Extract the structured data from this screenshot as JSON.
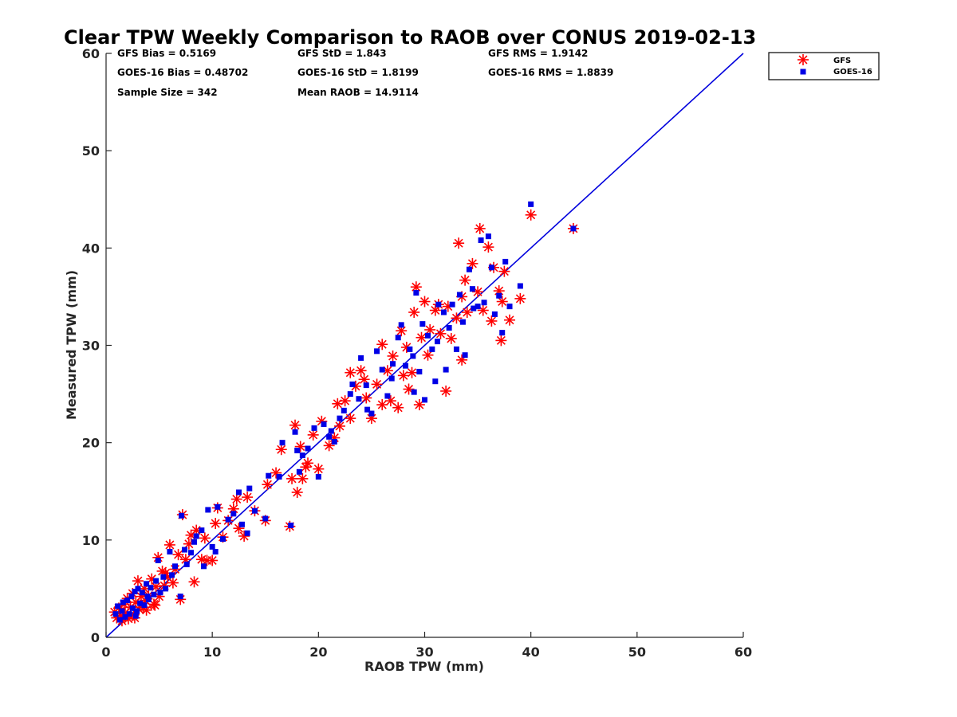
{
  "chart_data": {
    "type": "scatter",
    "title": "Clear TPW Weekly Comparison to RAOB over CONUS 2019-02-13",
    "xlabel": "RAOB TPW (mm)",
    "ylabel": "Measured TPW (mm)",
    "xlim": [
      0,
      60
    ],
    "ylim": [
      0,
      60
    ],
    "xticks": [
      "0",
      "10",
      "20",
      "30",
      "40",
      "50",
      "60"
    ],
    "yticks": [
      "0",
      "10",
      "20",
      "30",
      "40",
      "50",
      "60"
    ],
    "grid": false,
    "legend_position": "top-right",
    "reference_line": {
      "from": [
        0,
        0
      ],
      "to": [
        60,
        60
      ],
      "color": "#0000dd"
    },
    "stats": [
      [
        "GFS Bias = 0.5169",
        "GFS StD = 1.843",
        "GFS RMS = 1.9142"
      ],
      [
        "GOES-16 Bias = 0.48702",
        "GOES-16 StD = 1.8199",
        "GOES-16 RMS = 1.8839"
      ],
      [
        "Sample Size = 342",
        "Mean RAOB = 14.9114",
        ""
      ]
    ],
    "series": [
      {
        "name": "GFS",
        "marker": "asterisk",
        "color": "#ff0000",
        "points": [
          [
            0.8,
            2.6
          ],
          [
            1.0,
            2.0
          ],
          [
            1.2,
            3.0
          ],
          [
            1.4,
            2.2
          ],
          [
            1.5,
            1.7
          ],
          [
            1.7,
            3.4
          ],
          [
            1.8,
            2.5
          ],
          [
            2.0,
            4.0
          ],
          [
            2.1,
            1.9
          ],
          [
            2.3,
            3.1
          ],
          [
            2.5,
            4.5
          ],
          [
            2.6,
            2.3
          ],
          [
            2.8,
            3.6
          ],
          [
            3.0,
            5.8
          ],
          [
            3.1,
            2.9
          ],
          [
            3.3,
            4.2
          ],
          [
            3.5,
            3.1
          ],
          [
            3.6,
            5.0
          ],
          [
            3.8,
            2.8
          ],
          [
            4.0,
            4.3
          ],
          [
            4.3,
            6.0
          ],
          [
            4.5,
            3.4
          ],
          [
            4.7,
            5.2
          ],
          [
            4.9,
            8.2
          ],
          [
            5.0,
            4.2
          ],
          [
            5.3,
            6.8
          ],
          [
            5.5,
            5.3
          ],
          [
            5.8,
            6.2
          ],
          [
            6.0,
            9.5
          ],
          [
            6.3,
            5.6
          ],
          [
            6.5,
            7.0
          ],
          [
            6.8,
            8.5
          ],
          [
            7.0,
            3.9
          ],
          [
            7.2,
            12.6
          ],
          [
            7.5,
            8.0
          ],
          [
            7.8,
            9.6
          ],
          [
            8.0,
            10.5
          ],
          [
            8.3,
            5.7
          ],
          [
            8.5,
            11.0
          ],
          [
            9.0,
            8.0
          ],
          [
            9.3,
            10.2
          ],
          [
            9.5,
            7.9
          ],
          [
            10.0,
            7.9
          ],
          [
            10.3,
            11.7
          ],
          [
            10.5,
            13.3
          ],
          [
            11.0,
            10.3
          ],
          [
            11.5,
            12.0
          ],
          [
            12.0,
            13.2
          ],
          [
            12.3,
            14.2
          ],
          [
            12.5,
            11.2
          ],
          [
            13.0,
            10.4
          ],
          [
            13.3,
            14.4
          ],
          [
            14.0,
            13.0
          ],
          [
            15.0,
            12.0
          ],
          [
            15.2,
            15.7
          ],
          [
            16.0,
            16.9
          ],
          [
            16.5,
            19.3
          ],
          [
            17.5,
            16.3
          ],
          [
            17.8,
            21.8
          ],
          [
            18.0,
            14.9
          ],
          [
            18.3,
            19.6
          ],
          [
            18.8,
            17.5
          ],
          [
            19.0,
            17.9
          ],
          [
            19.5,
            20.8
          ],
          [
            20.0,
            17.3
          ],
          [
            20.3,
            22.2
          ],
          [
            21.0,
            19.7
          ],
          [
            21.5,
            20.5
          ],
          [
            22.0,
            21.7
          ],
          [
            22.5,
            24.3
          ],
          [
            23.0,
            22.5
          ],
          [
            23.0,
            27.2
          ],
          [
            23.5,
            25.8
          ],
          [
            24.0,
            27.4
          ],
          [
            24.5,
            24.6
          ],
          [
            25.0,
            22.5
          ],
          [
            25.5,
            26.0
          ],
          [
            26.0,
            23.9
          ],
          [
            26.0,
            30.1
          ],
          [
            26.5,
            27.4
          ],
          [
            27.0,
            28.9
          ],
          [
            27.5,
            23.6
          ],
          [
            27.8,
            31.5
          ],
          [
            28.0,
            26.9
          ],
          [
            28.3,
            29.8
          ],
          [
            28.5,
            25.5
          ],
          [
            29.0,
            33.4
          ],
          [
            29.2,
            36.0
          ],
          [
            29.5,
            23.9
          ],
          [
            29.7,
            30.8
          ],
          [
            30.0,
            34.5
          ],
          [
            30.3,
            29.0
          ],
          [
            30.5,
            31.6
          ],
          [
            31.0,
            33.6
          ],
          [
            31.5,
            31.2
          ],
          [
            32.0,
            25.3
          ],
          [
            32.2,
            34.0
          ],
          [
            32.5,
            30.7
          ],
          [
            33.0,
            32.8
          ],
          [
            33.2,
            40.5
          ],
          [
            33.5,
            28.5
          ],
          [
            33.8,
            36.7
          ],
          [
            34.0,
            33.4
          ],
          [
            34.5,
            38.4
          ],
          [
            35.0,
            35.5
          ],
          [
            35.2,
            42.0
          ],
          [
            35.5,
            33.6
          ],
          [
            36.0,
            40.1
          ],
          [
            36.3,
            32.5
          ],
          [
            36.5,
            38.0
          ],
          [
            37.0,
            35.6
          ],
          [
            37.2,
            30.5
          ],
          [
            37.5,
            37.6
          ],
          [
            38.0,
            32.6
          ],
          [
            39.0,
            34.8
          ],
          [
            40.0,
            43.4
          ],
          [
            44.0,
            42.0
          ],
          [
            17.3,
            11.4
          ],
          [
            18.5,
            16.3
          ],
          [
            21.8,
            24.0
          ],
          [
            24.3,
            26.5
          ],
          [
            26.8,
            24.3
          ],
          [
            28.8,
            27.2
          ],
          [
            31.3,
            34.2
          ],
          [
            33.5,
            35.0
          ],
          [
            37.3,
            34.5
          ],
          [
            2.7,
            2.0
          ],
          [
            3.7,
            3.8
          ],
          [
            4.6,
            3.3
          ],
          [
            5.6,
            6.6
          ]
        ]
      },
      {
        "name": "GOES-16",
        "marker": "square",
        "color": "#0000e6",
        "points": [
          [
            0.9,
            2.4
          ],
          [
            1.1,
            3.2
          ],
          [
            1.3,
            1.8
          ],
          [
            1.5,
            2.7
          ],
          [
            1.6,
            3.6
          ],
          [
            1.8,
            2.1
          ],
          [
            2.0,
            3.8
          ],
          [
            2.2,
            2.4
          ],
          [
            2.4,
            4.2
          ],
          [
            2.5,
            3.0
          ],
          [
            2.7,
            4.7
          ],
          [
            2.9,
            2.7
          ],
          [
            3.0,
            5.0
          ],
          [
            3.2,
            3.5
          ],
          [
            3.4,
            4.6
          ],
          [
            3.6,
            3.3
          ],
          [
            3.8,
            5.5
          ],
          [
            4.0,
            3.9
          ],
          [
            4.2,
            5.1
          ],
          [
            4.5,
            4.4
          ],
          [
            4.7,
            5.8
          ],
          [
            4.9,
            7.9
          ],
          [
            5.1,
            4.6
          ],
          [
            5.4,
            6.2
          ],
          [
            5.6,
            5.0
          ],
          [
            6.0,
            8.8
          ],
          [
            6.2,
            6.4
          ],
          [
            6.5,
            7.3
          ],
          [
            7.0,
            4.2
          ],
          [
            7.1,
            12.5
          ],
          [
            7.4,
            9.0
          ],
          [
            7.6,
            7.5
          ],
          [
            8.0,
            8.7
          ],
          [
            8.3,
            9.8
          ],
          [
            8.5,
            10.4
          ],
          [
            9.0,
            11.0
          ],
          [
            9.2,
            7.3
          ],
          [
            9.6,
            13.1
          ],
          [
            10.0,
            9.3
          ],
          [
            10.3,
            8.8
          ],
          [
            10.5,
            13.4
          ],
          [
            11.0,
            10.1
          ],
          [
            11.5,
            12.1
          ],
          [
            12.0,
            12.7
          ],
          [
            12.5,
            14.9
          ],
          [
            12.8,
            11.6
          ],
          [
            13.3,
            10.7
          ],
          [
            13.5,
            15.3
          ],
          [
            14.0,
            13.0
          ],
          [
            15.0,
            12.2
          ],
          [
            15.3,
            16.6
          ],
          [
            16.3,
            16.5
          ],
          [
            16.6,
            20.0
          ],
          [
            17.4,
            11.5
          ],
          [
            17.8,
            21.1
          ],
          [
            18.2,
            17.0
          ],
          [
            18.5,
            18.7
          ],
          [
            19.0,
            19.4
          ],
          [
            19.6,
            21.5
          ],
          [
            20.0,
            16.5
          ],
          [
            20.5,
            21.9
          ],
          [
            21.0,
            20.6
          ],
          [
            21.5,
            20.1
          ],
          [
            22.0,
            22.5
          ],
          [
            22.4,
            23.3
          ],
          [
            23.0,
            25.0
          ],
          [
            23.2,
            26.0
          ],
          [
            23.8,
            24.5
          ],
          [
            24.0,
            28.7
          ],
          [
            24.5,
            25.9
          ],
          [
            25.0,
            23.0
          ],
          [
            25.5,
            29.4
          ],
          [
            26.0,
            27.5
          ],
          [
            26.5,
            24.8
          ],
          [
            27.0,
            28.1
          ],
          [
            27.5,
            30.8
          ],
          [
            27.8,
            32.1
          ],
          [
            28.2,
            27.9
          ],
          [
            28.6,
            29.6
          ],
          [
            29.0,
            25.2
          ],
          [
            29.2,
            35.4
          ],
          [
            29.5,
            27.3
          ],
          [
            29.8,
            32.2
          ],
          [
            30.0,
            24.4
          ],
          [
            30.3,
            31.0
          ],
          [
            30.7,
            29.6
          ],
          [
            31.0,
            26.3
          ],
          [
            31.3,
            34.2
          ],
          [
            31.8,
            33.4
          ],
          [
            32.0,
            27.5
          ],
          [
            32.3,
            31.8
          ],
          [
            32.6,
            34.2
          ],
          [
            33.0,
            29.6
          ],
          [
            33.3,
            35.2
          ],
          [
            33.6,
            32.4
          ],
          [
            33.8,
            29.0
          ],
          [
            34.2,
            37.8
          ],
          [
            34.6,
            33.8
          ],
          [
            35.0,
            34.0
          ],
          [
            35.3,
            40.8
          ],
          [
            35.6,
            34.4
          ],
          [
            36.0,
            41.2
          ],
          [
            36.3,
            38.0
          ],
          [
            36.6,
            33.2
          ],
          [
            37.0,
            35.1
          ],
          [
            37.3,
            31.3
          ],
          [
            37.6,
            38.6
          ],
          [
            38.0,
            34.0
          ],
          [
            39.0,
            36.1
          ],
          [
            40.0,
            44.5
          ],
          [
            44.0,
            42.0
          ],
          [
            18.0,
            19.2
          ],
          [
            21.2,
            21.2
          ],
          [
            24.6,
            23.4
          ],
          [
            26.9,
            26.6
          ],
          [
            28.9,
            28.9
          ],
          [
            31.2,
            30.4
          ],
          [
            34.5,
            35.8
          ],
          [
            2.8,
            2.2
          ],
          [
            3.9,
            4.2
          ]
        ]
      }
    ]
  }
}
